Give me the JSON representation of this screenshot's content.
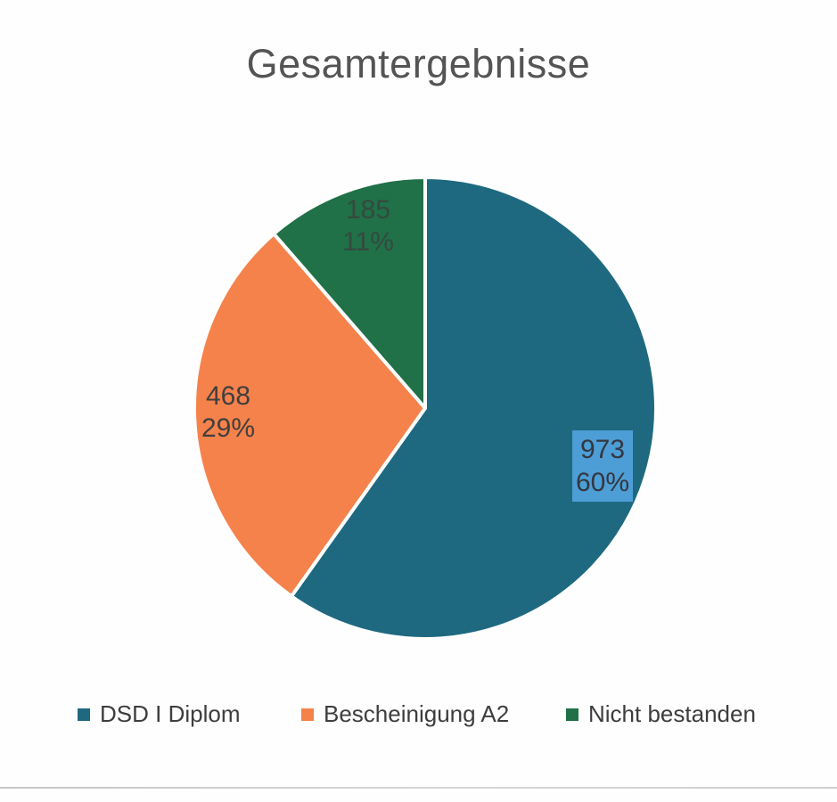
{
  "title": "Gesamtergebnisse",
  "chart_data": {
    "type": "pie",
    "title": "Gesamtergebnisse",
    "direction": "clockwise",
    "start_angle_deg": 0,
    "legend_position": "bottom",
    "slices": [
      {
        "label": "DSD I Diplom",
        "value": 973,
        "percent": 60,
        "value_text": "973",
        "percent_text": "60%",
        "color": "#1e6980",
        "highlighted": true,
        "highlight_box_color": "#4d9ed6"
      },
      {
        "label": "Bescheinigung A2",
        "value": 468,
        "percent": 29,
        "value_text": "468",
        "percent_text": "29%",
        "color": "#f5824b",
        "highlighted": false
      },
      {
        "label": "Nicht bestanden",
        "value": 185,
        "percent": 11,
        "value_text": "185",
        "percent_text": "11%",
        "color": "#207048",
        "highlighted": false
      }
    ]
  },
  "colors": {
    "slice_border": "#ffffff",
    "title_text": "#545454",
    "label_text": "#3f3f3f"
  }
}
